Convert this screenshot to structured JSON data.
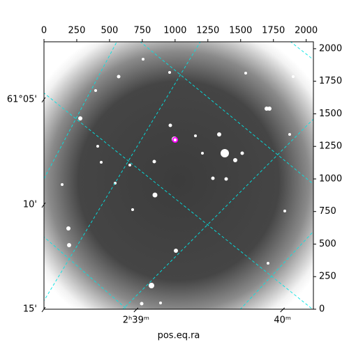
{
  "chart_data": {
    "type": "image",
    "xlabel": "pos.eq.ra",
    "xlim": [
      0,
      2055
    ],
    "xticks": [
      0,
      250,
      500,
      750,
      1000,
      1250,
      1500,
      1750,
      2000
    ],
    "ylim": [
      0,
      2053
    ],
    "yticks": [
      0,
      250,
      500,
      750,
      1000,
      1250,
      1500,
      1750,
      2000
    ],
    "ra_ticks": [
      {
        "value": 702,
        "label": "2ʰ39ᵐ"
      },
      {
        "value": 1819,
        "label": "40ᵐ"
      }
    ],
    "dec_ticks": [
      {
        "value": 1610,
        "label": "61°05'"
      },
      {
        "value": 802,
        "label": "10'"
      },
      {
        "value": 0,
        "label": "15'"
      }
    ],
    "marker": {
      "x": 1000,
      "y": 1300,
      "color": "#ff00ff"
    },
    "grid_color": "#00e5e5"
  }
}
